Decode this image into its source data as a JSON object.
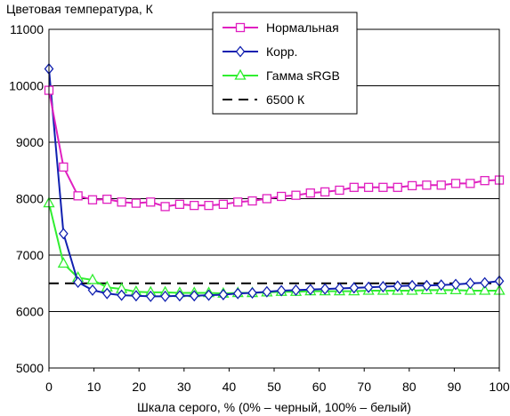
{
  "chart_data": {
    "type": "line",
    "title": "Цветовая температура, К",
    "xlabel": "Шкала серого, % (0% – черный, 100% – белый)",
    "ylabel": "",
    "xlim": [
      0,
      100
    ],
    "ylim": [
      5000,
      11000
    ],
    "xticks": [
      "0",
      "10",
      "20",
      "30",
      "40",
      "50",
      "60",
      "70",
      "80",
      "90",
      "100"
    ],
    "yticks": [
      "5000",
      "6000",
      "7000",
      "8000",
      "9000",
      "10000",
      "11000"
    ],
    "grid": "horizontal",
    "legend_position": "top-right",
    "x": [
      0,
      3.23,
      6.45,
      9.68,
      12.9,
      16.13,
      19.35,
      22.58,
      25.81,
      29.03,
      32.26,
      35.48,
      38.71,
      41.94,
      45.16,
      48.39,
      51.61,
      54.84,
      58.06,
      61.29,
      64.52,
      67.74,
      70.97,
      74.19,
      77.42,
      80.65,
      83.87,
      87.1,
      90.32,
      93.55,
      96.77,
      100
    ],
    "series": [
      {
        "name": "Нормальная",
        "color": "#e020c0",
        "marker": "square",
        "values": [
          9920,
          8560,
          8050,
          7980,
          7990,
          7940,
          7920,
          7940,
          7860,
          7900,
          7880,
          7880,
          7900,
          7940,
          7960,
          8000,
          8040,
          8060,
          8100,
          8120,
          8150,
          8200,
          8200,
          8200,
          8200,
          8230,
          8240,
          8240,
          8270,
          8270,
          8320,
          8330
        ]
      },
      {
        "name": "Корр.",
        "color": "#1020b0",
        "marker": "diamond",
        "values": [
          10300,
          7380,
          6520,
          6380,
          6320,
          6290,
          6280,
          6270,
          6270,
          6280,
          6280,
          6290,
          6300,
          6320,
          6330,
          6350,
          6370,
          6380,
          6390,
          6400,
          6410,
          6420,
          6430,
          6440,
          6450,
          6460,
          6460,
          6470,
          6480,
          6500,
          6510,
          6540
        ]
      },
      {
        "name": "Гамма sRGB",
        "color": "#30ee30",
        "marker": "triangle",
        "values": [
          7920,
          6850,
          6600,
          6560,
          6430,
          6400,
          6350,
          6340,
          6340,
          6330,
          6330,
          6330,
          6320,
          6330,
          6330,
          6340,
          6350,
          6350,
          6360,
          6360,
          6360,
          6360,
          6370,
          6370,
          6370,
          6370,
          6380,
          6380,
          6380,
          6370,
          6370,
          6370
        ]
      }
    ],
    "reference_line": {
      "name": "6500 К",
      "y": 6500,
      "color": "#000000",
      "style": "dashed"
    }
  }
}
